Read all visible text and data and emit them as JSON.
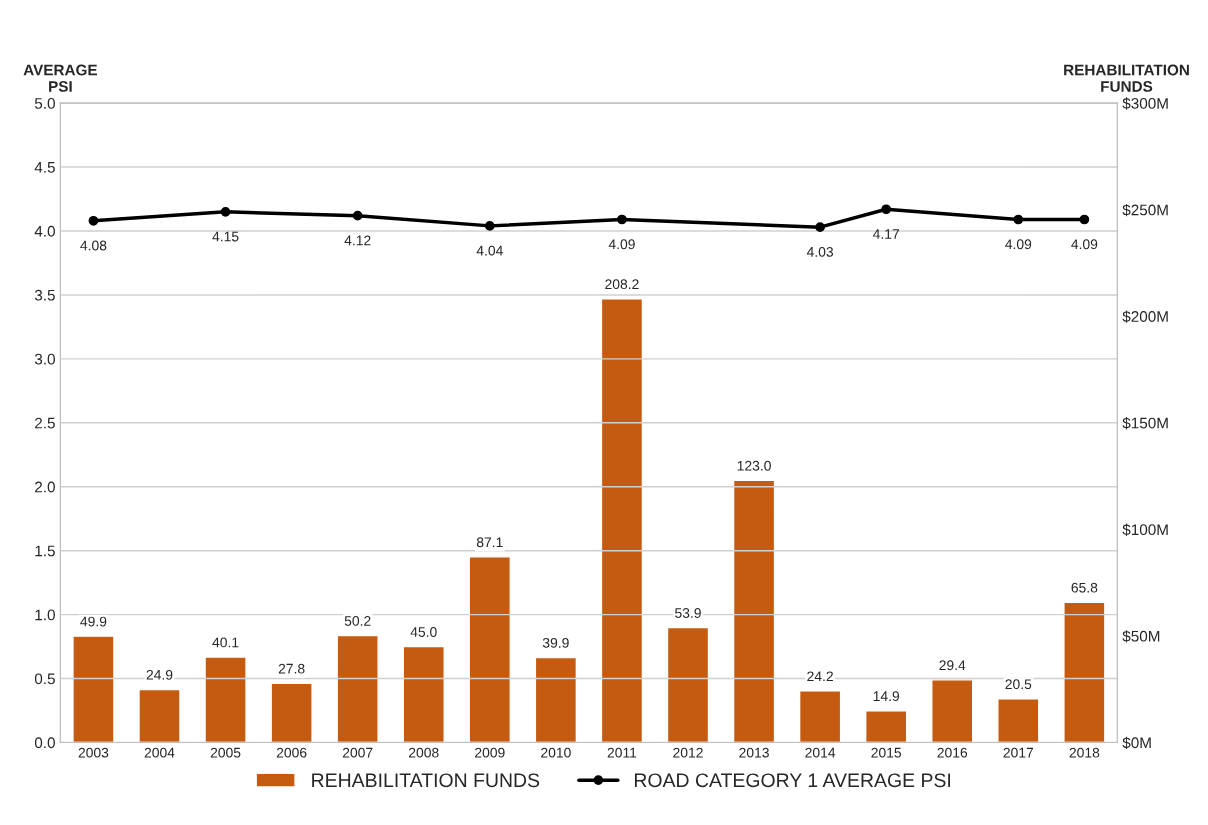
{
  "chart_data": {
    "type": "bar",
    "categories": [
      "2003",
      "2004",
      "2005",
      "2006",
      "2007",
      "2008",
      "2009",
      "2010",
      "2011",
      "2012",
      "2013",
      "2014",
      "2015",
      "2016",
      "2017",
      "2018"
    ],
    "ylabel": "AVERAGE\nPSI",
    "y2label": "REHABILITATION\nFUNDS",
    "series": [
      {
        "name": "REHABILITATION FUNDS",
        "axis": "y2",
        "color": "#c55a11",
        "values": [
          49.9,
          24.9,
          40.1,
          27.8,
          50.2,
          45.0,
          87.1,
          39.9,
          208.2,
          53.9,
          123.0,
          24.2,
          14.9,
          29.4,
          20.5,
          65.8
        ],
        "value_labels": [
          "49.9",
          "24.9",
          "40.1",
          "27.8",
          "50.2",
          "45.0",
          "87.1",
          "39.9",
          "208.2",
          "53.9",
          "123.0",
          "24.2",
          "14.9",
          "29.4",
          "20.5",
          "65.8"
        ]
      },
      {
        "name": "ROAD CATEGORY 1 AVERAGE PSI",
        "type": "line",
        "axis": "y",
        "color": "#000000",
        "marker": "circle",
        "values": [
          4.08,
          null,
          4.15,
          null,
          4.12,
          null,
          4.04,
          null,
          4.09,
          null,
          null,
          4.03,
          4.17,
          null,
          4.09,
          4.09
        ]
      }
    ],
    "ylim": [
      0,
      5
    ],
    "yticks": [
      {
        "value": 0,
        "label": "0.0"
      },
      {
        "value": 0.5,
        "label": "0.5"
      },
      {
        "value": 1,
        "label": "1.0"
      },
      {
        "value": 1.5,
        "label": "1.5"
      },
      {
        "value": 2,
        "label": "2.0"
      },
      {
        "value": 2.5,
        "label": "2.5"
      },
      {
        "value": 3,
        "label": "3.0"
      },
      {
        "value": 3.5,
        "label": "3.5"
      },
      {
        "value": 4,
        "label": "4.0"
      },
      {
        "value": 4.5,
        "label": "4.5"
      },
      {
        "value": 5,
        "label": "5.0"
      }
    ],
    "y2lim": [
      0,
      300
    ],
    "y2ticks": [
      {
        "value": 0,
        "label": "$0M"
      },
      {
        "value": 50,
        "label": "$50M"
      },
      {
        "value": 100,
        "label": "$100M"
      },
      {
        "value": 150,
        "label": "$150M"
      },
      {
        "value": 200,
        "label": "$200M"
      },
      {
        "value": 250,
        "label": "$250M"
      },
      {
        "value": 300,
        "label": "$300M"
      }
    ],
    "grid": "y",
    "legend": "bottom",
    "data_labels": true
  }
}
